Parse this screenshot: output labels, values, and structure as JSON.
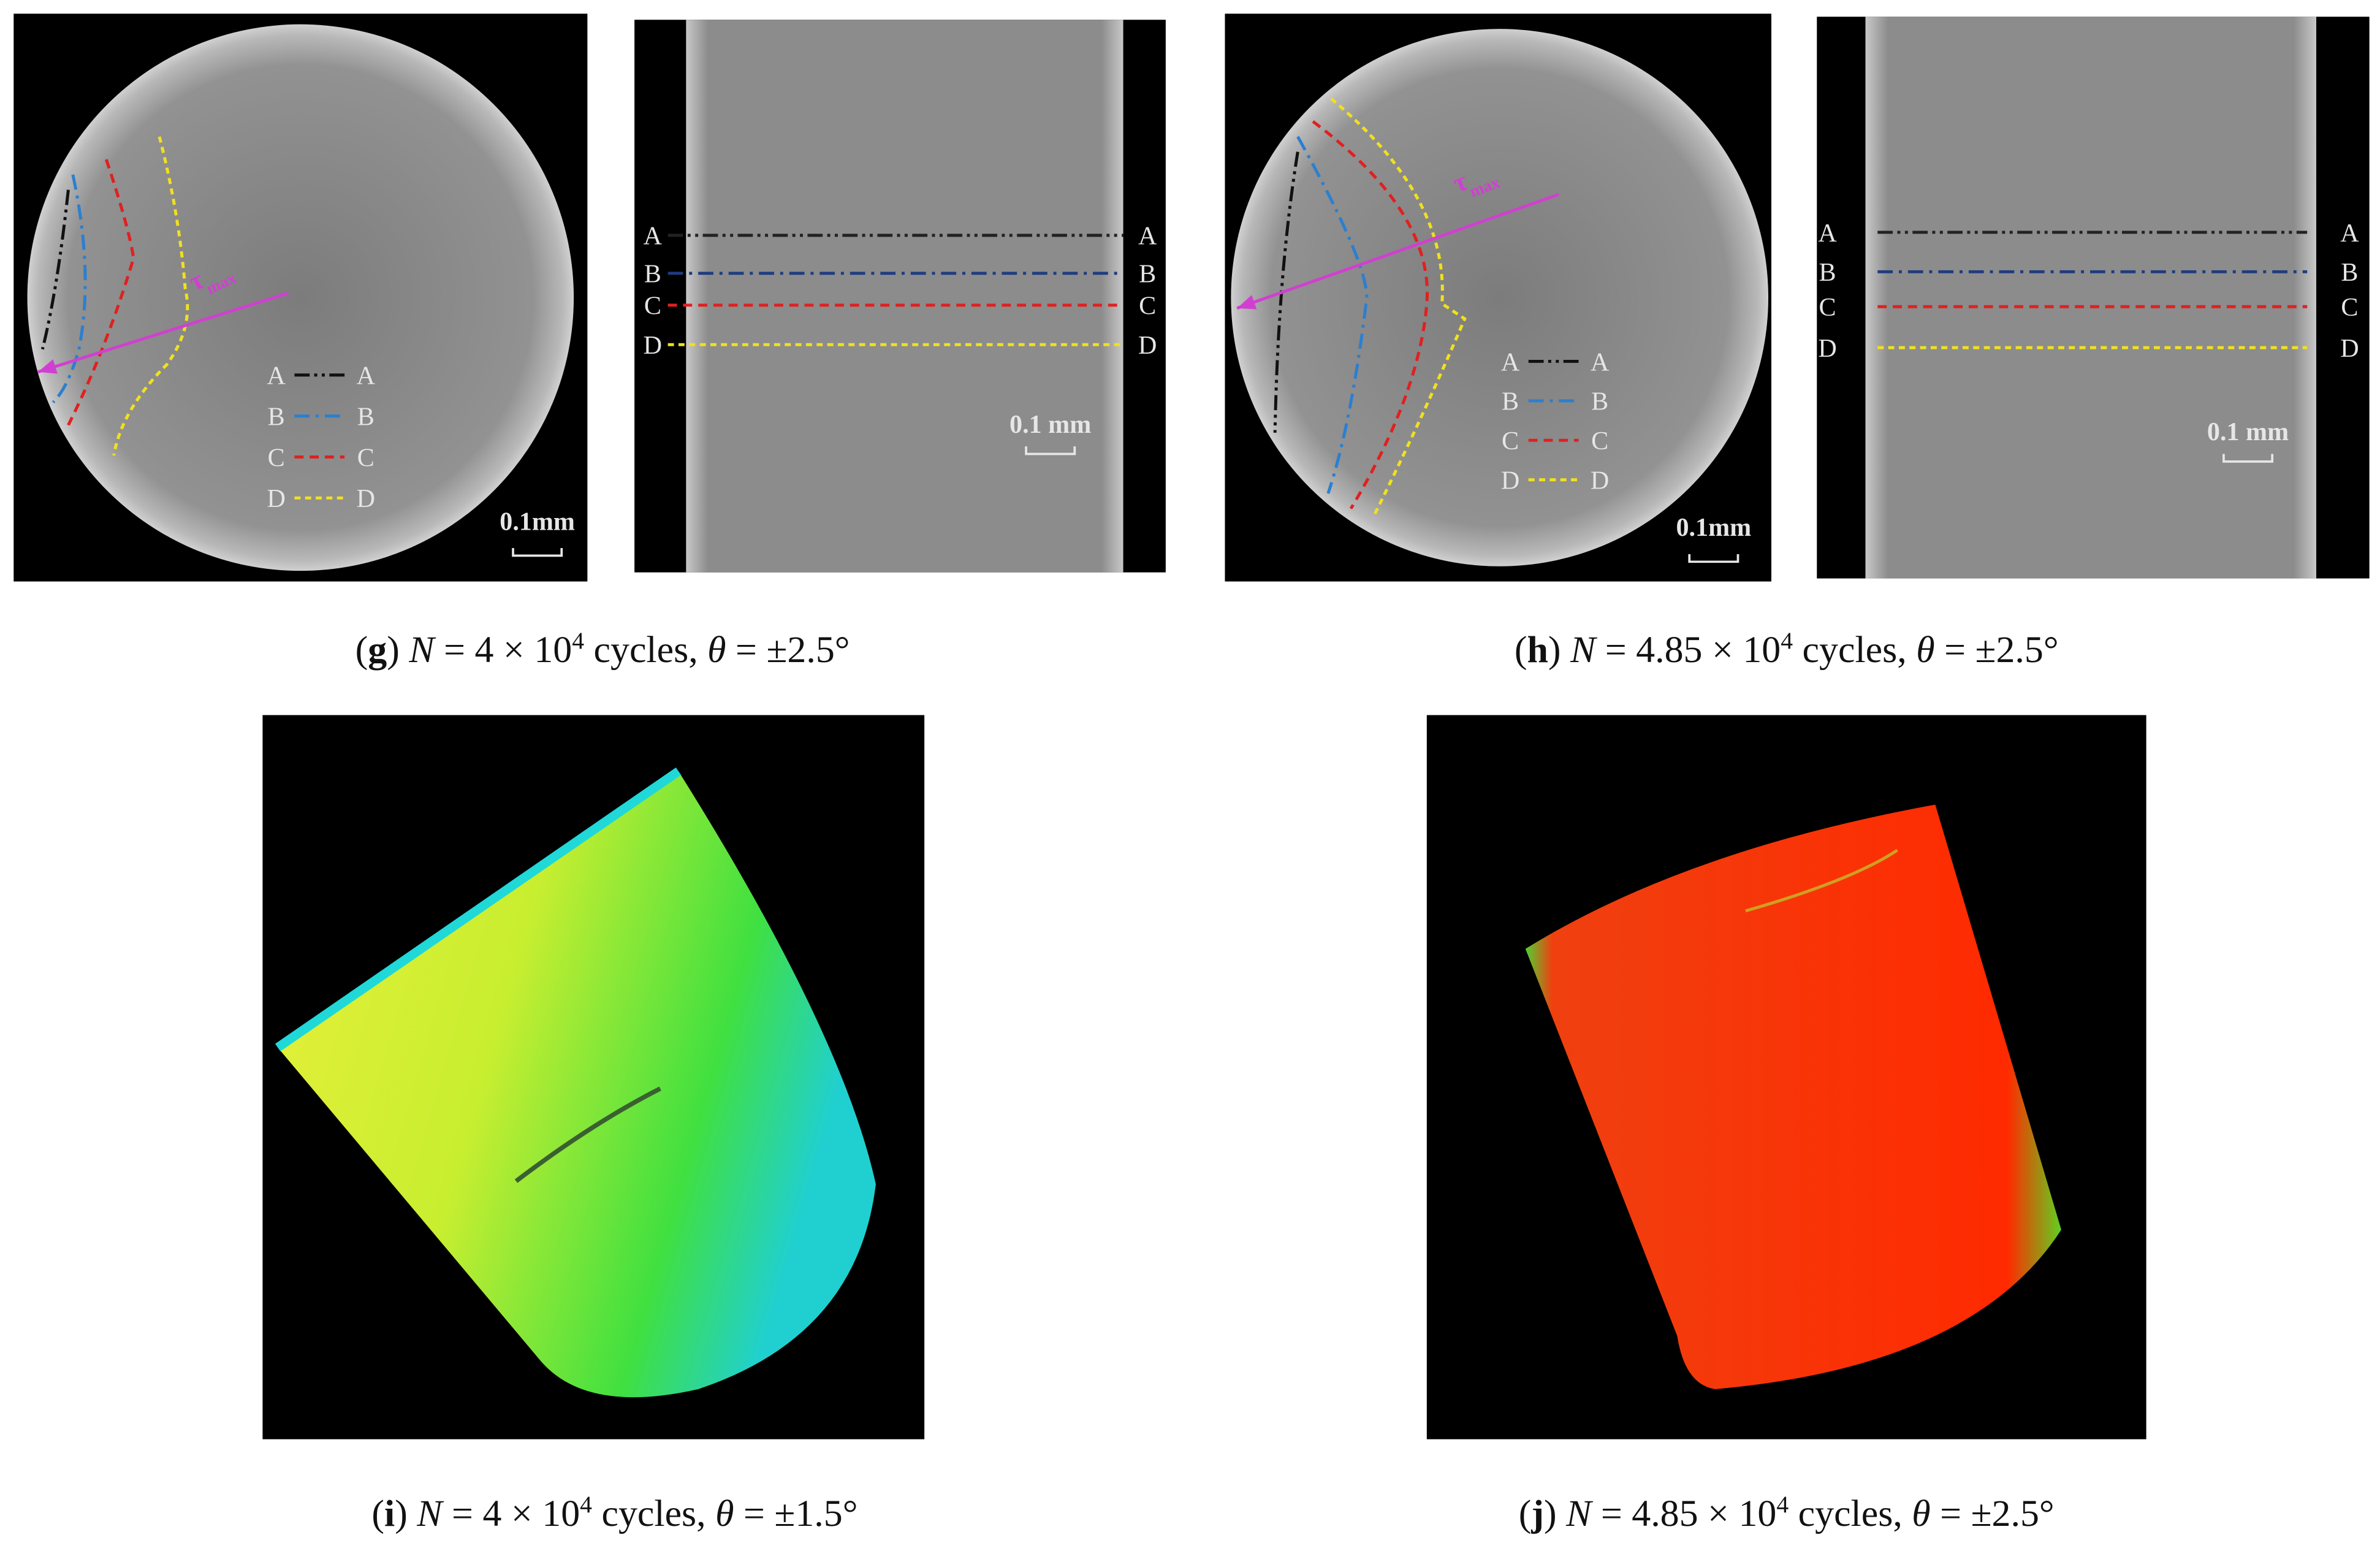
{
  "panels": [
    {
      "cross_section": {
        "legend": [
          {
            "start": "A",
            "end": "A"
          },
          {
            "start": "B",
            "end": "B"
          },
          {
            "start": "C",
            "end": "C"
          },
          {
            "start": "D",
            "end": "D"
          }
        ],
        "tau_symbol": "τ",
        "tau_sub": "max",
        "scale_bar": "0.1mm"
      },
      "longitudinal": {
        "lines": [
          {
            "left": "A",
            "right": "A"
          },
          {
            "left": "B",
            "right": "B"
          },
          {
            "left": "C",
            "right": "C"
          },
          {
            "left": "D",
            "right": "D"
          }
        ],
        "scale_bar": "0.1 mm"
      },
      "caption": [
        {
          "text": "(",
          "style": "normal"
        },
        {
          "text": "g",
          "style": "bold"
        },
        {
          "text": ") ",
          "style": "normal"
        },
        {
          "text": "N",
          "style": "italic"
        },
        {
          "text": " = 4 × 10",
          "style": "normal"
        },
        {
          "text": "4",
          "style": "sup"
        },
        {
          "text": " cycles, ",
          "style": "normal"
        },
        {
          "text": "θ",
          "style": "italic"
        },
        {
          "text": " = ±2.5°",
          "style": "normal"
        }
      ]
    },
    {
      "cross_section": {
        "legend": [
          {
            "start": "A",
            "end": "A"
          },
          {
            "start": "B",
            "end": "B"
          },
          {
            "start": "C",
            "end": "C"
          },
          {
            "start": "D",
            "end": "D"
          }
        ],
        "tau_symbol": "τ",
        "tau_sub": "max",
        "scale_bar": "0.1mm"
      },
      "longitudinal": {
        "lines": [
          {
            "left": "A",
            "right": "A"
          },
          {
            "left": "B",
            "right": "B"
          },
          {
            "left": "C",
            "right": "C"
          },
          {
            "left": "D",
            "right": "D"
          }
        ],
        "scale_bar": "0.1 mm"
      },
      "caption": [
        {
          "text": "(",
          "style": "normal"
        },
        {
          "text": "h",
          "style": "bold"
        },
        {
          "text": ") ",
          "style": "normal"
        },
        {
          "text": "N",
          "style": "italic"
        },
        {
          "text": " = 4.85 × 10",
          "style": "normal"
        },
        {
          "text": "4",
          "style": "sup"
        },
        {
          "text": " cycles, ",
          "style": "normal"
        },
        {
          "text": "θ",
          "style": "italic"
        },
        {
          "text": " = ±2.5°",
          "style": "normal"
        }
      ]
    }
  ],
  "renders": [
    {
      "caption": [
        {
          "text": "(",
          "style": "normal"
        },
        {
          "text": "i",
          "style": "bold"
        },
        {
          "text": ") ",
          "style": "normal"
        },
        {
          "text": "N",
          "style": "italic"
        },
        {
          "text": " = 4 × 10",
          "style": "normal"
        },
        {
          "text": "4",
          "style": "sup"
        },
        {
          "text": " cycles, ",
          "style": "normal"
        },
        {
          "text": "θ",
          "style": "italic"
        },
        {
          "text": " = ±1.5°",
          "style": "normal"
        }
      ]
    },
    {
      "caption": [
        {
          "text": "(",
          "style": "normal"
        },
        {
          "text": "j",
          "style": "bold"
        },
        {
          "text": ") ",
          "style": "normal"
        },
        {
          "text": "N",
          "style": "italic"
        },
        {
          "text": " = 4.85 × 10",
          "style": "normal"
        },
        {
          "text": "4",
          "style": "sup"
        },
        {
          "text": " cycles, ",
          "style": "normal"
        },
        {
          "text": "θ",
          "style": "italic"
        },
        {
          "text": " = ±2.5°",
          "style": "normal"
        }
      ]
    }
  ]
}
